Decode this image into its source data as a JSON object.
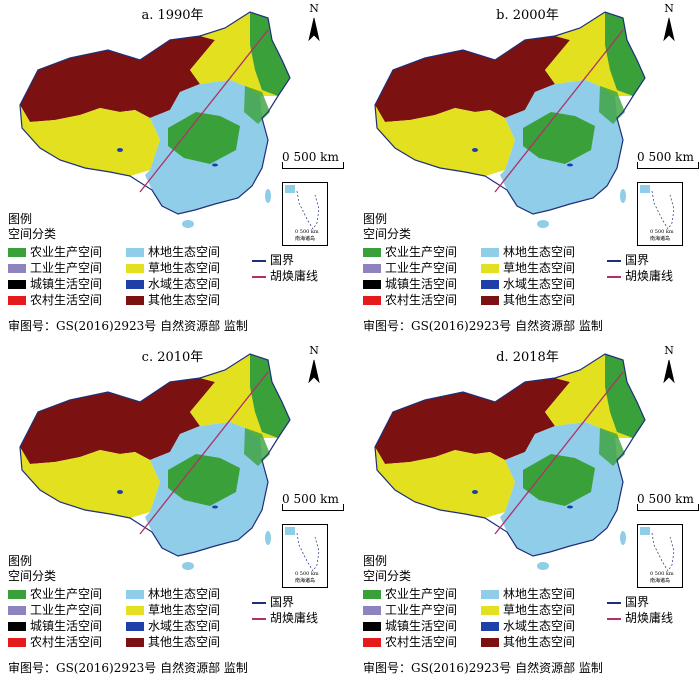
{
  "panels": [
    {
      "title": "a. 1990年"
    },
    {
      "title": "b. 2000年"
    },
    {
      "title": "c. 2010年"
    },
    {
      "title": "d. 2018年"
    }
  ],
  "north_label": "N",
  "scale_label": "0  500 km",
  "inset": {
    "caption": "南海诸岛",
    "scale": "0  500 km"
  },
  "legend": {
    "heading": "图例",
    "subheading": "空间分类",
    "categories": [
      {
        "label": "农业生产空间",
        "color": "#3aa13a"
      },
      {
        "label": "工业生产空间",
        "color": "#8e83bf"
      },
      {
        "label": "城镇生活空间",
        "color": "#000000"
      },
      {
        "label": "农村生活空间",
        "color": "#e41a1c"
      },
      {
        "label": "林地生态空间",
        "color": "#8fcde8"
      },
      {
        "label": "草地生态空间",
        "color": "#e3e01f"
      },
      {
        "label": "水域生态空间",
        "color": "#1f3fa8"
      },
      {
        "label": "其他生态空间",
        "color": "#7b1111"
      }
    ],
    "lines": [
      {
        "label": "国界",
        "color": "#1e2f7a"
      },
      {
        "label": "胡焕庸线",
        "color": "#b0306b"
      }
    ]
  },
  "approval": "审图号：GS(2016)2923号   自然资源部 监制"
}
